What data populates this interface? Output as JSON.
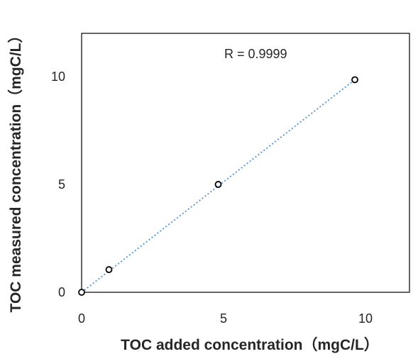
{
  "chart_data": {
    "type": "scatter",
    "title": "",
    "xlabel": "TOC added concentration（mgC/L）",
    "ylabel": "TOC measured concentration（mgC/L）",
    "xlim": [
      0,
      12
    ],
    "ylim": [
      0,
      12
    ],
    "x_ticks": [
      "0",
      "5",
      "10"
    ],
    "y_ticks": [
      "0",
      "5",
      "10"
    ],
    "grid": false,
    "legend": "none",
    "series": [
      {
        "x": [
          0,
          1,
          5,
          10
        ],
        "y": [
          0,
          1.05,
          5.0,
          9.85
        ],
        "marker": "hollow-circle",
        "color": "#000000"
      }
    ],
    "trendline": {
      "type": "linear",
      "style": "dotted",
      "color": "#5b9bd5",
      "x": [
        0,
        10
      ],
      "y": [
        0,
        9.85
      ]
    },
    "annotations": [
      "R = 0.9999"
    ]
  }
}
